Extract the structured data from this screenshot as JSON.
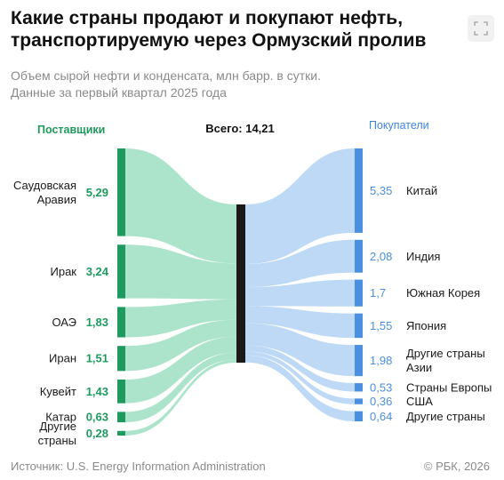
{
  "header": {
    "title_line1": "Какие страны продают и покупают нефть,",
    "title_line2": "транспортируемую через Ормузский пролив",
    "subtitle_line1": "Объем сырой нефти и конденсата, млн барр. в сутки.",
    "subtitle_line2": "Данные за первый квартал 2025 года",
    "expand_icon": "expand-icon"
  },
  "footer": {
    "source": "Источник: U.S. Energy Information Administration",
    "copyright": "© РБК, 2026"
  },
  "chart_data": {
    "type": "sankey",
    "total_label": "Всего: 14,21",
    "total": 14.21,
    "suppliers_label": "Поставщики",
    "buyers_label": "Покупатели",
    "suppliers": [
      {
        "name": [
          "Саудовская",
          "Аравия"
        ],
        "value": 5.29,
        "value_label": "5,29"
      },
      {
        "name": [
          "Ирак"
        ],
        "value": 3.24,
        "value_label": "3,24"
      },
      {
        "name": [
          "ОАЭ"
        ],
        "value": 1.83,
        "value_label": "1,83"
      },
      {
        "name": [
          "Иран"
        ],
        "value": 1.51,
        "value_label": "1,51"
      },
      {
        "name": [
          "Кувейт"
        ],
        "value": 1.43,
        "value_label": "1,43"
      },
      {
        "name": [
          "Катар"
        ],
        "value": 0.63,
        "value_label": "0,63"
      },
      {
        "name": [
          "Другие",
          "страны"
        ],
        "value": 0.28,
        "value_label": "0,28"
      }
    ],
    "buyers": [
      {
        "name": [
          "Китай"
        ],
        "value": 5.35,
        "value_label": "5,35"
      },
      {
        "name": [
          "Индия"
        ],
        "value": 2.08,
        "value_label": "2,08"
      },
      {
        "name": [
          "Южная Корея"
        ],
        "value": 1.7,
        "value_label": "1,7"
      },
      {
        "name": [
          "Япония"
        ],
        "value": 1.55,
        "value_label": "1,55"
      },
      {
        "name": [
          "Другие страны",
          "Азии"
        ],
        "value": 1.98,
        "value_label": "1,98"
      },
      {
        "name": [
          "Страны Европы"
        ],
        "value": 0.53,
        "value_label": "0,53"
      },
      {
        "name": [
          "США"
        ],
        "value": 0.36,
        "value_label": "0,36"
      },
      {
        "name": [
          "Другие страны"
        ],
        "value": 0.64,
        "value_label": "0,64"
      }
    ],
    "colors": {
      "supplier_bar": "#1f9a5e",
      "supplier_flow": "#a8e3c8",
      "buyer_bar": "#4a8fe0",
      "buyer_flow": "#b9d7f5",
      "center_bar": "#1a1a1a"
    }
  }
}
